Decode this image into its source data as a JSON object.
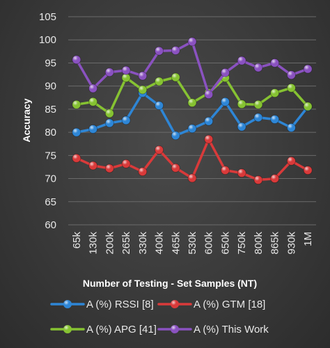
{
  "chart_data": {
    "type": "line",
    "title": "",
    "xlabel": "Number of Testing - Set Samples (NT)",
    "ylabel": "Accuracy",
    "ylim": [
      60,
      105
    ],
    "yticks": [
      60,
      65,
      70,
      75,
      80,
      85,
      90,
      95,
      100,
      105
    ],
    "grid": true,
    "legend_position": "bottom",
    "categories": [
      "65k",
      "130k",
      "200k",
      "265k",
      "330k",
      "400k",
      "465k",
      "530k",
      "600k",
      "650k",
      "750k",
      "800k",
      "865k",
      "930k",
      "1M"
    ],
    "series": [
      {
        "name": "A (%) RSSI [8]",
        "color": "#2e86d6",
        "values": [
          80.0,
          80.7,
          82.0,
          82.6,
          88.5,
          85.8,
          79.3,
          80.8,
          82.4,
          86.6,
          81.2,
          83.2,
          82.8,
          81.0,
          85.5
        ]
      },
      {
        "name": "A (%) GTM [18]",
        "color": "#d93a3a",
        "values": [
          74.4,
          72.8,
          72.2,
          73.2,
          71.5,
          76.2,
          72.3,
          70.1,
          78.5,
          71.8,
          71.2,
          69.7,
          70.0,
          73.8,
          71.8
        ]
      },
      {
        "name": "A (%) APG [41]",
        "color": "#86c232",
        "values": [
          86.0,
          86.6,
          84.1,
          91.8,
          89.2,
          91.0,
          91.9,
          86.4,
          88.5,
          91.8,
          86.1,
          86.0,
          88.5,
          89.6,
          85.6
        ]
      },
      {
        "name": "A (%) This Work",
        "color": "#8a52c0",
        "values": [
          95.7,
          89.5,
          93.0,
          93.4,
          92.2,
          97.6,
          97.7,
          99.6,
          88.2,
          92.9,
          95.5,
          94.0,
          95.0,
          92.4,
          93.7
        ]
      }
    ]
  }
}
